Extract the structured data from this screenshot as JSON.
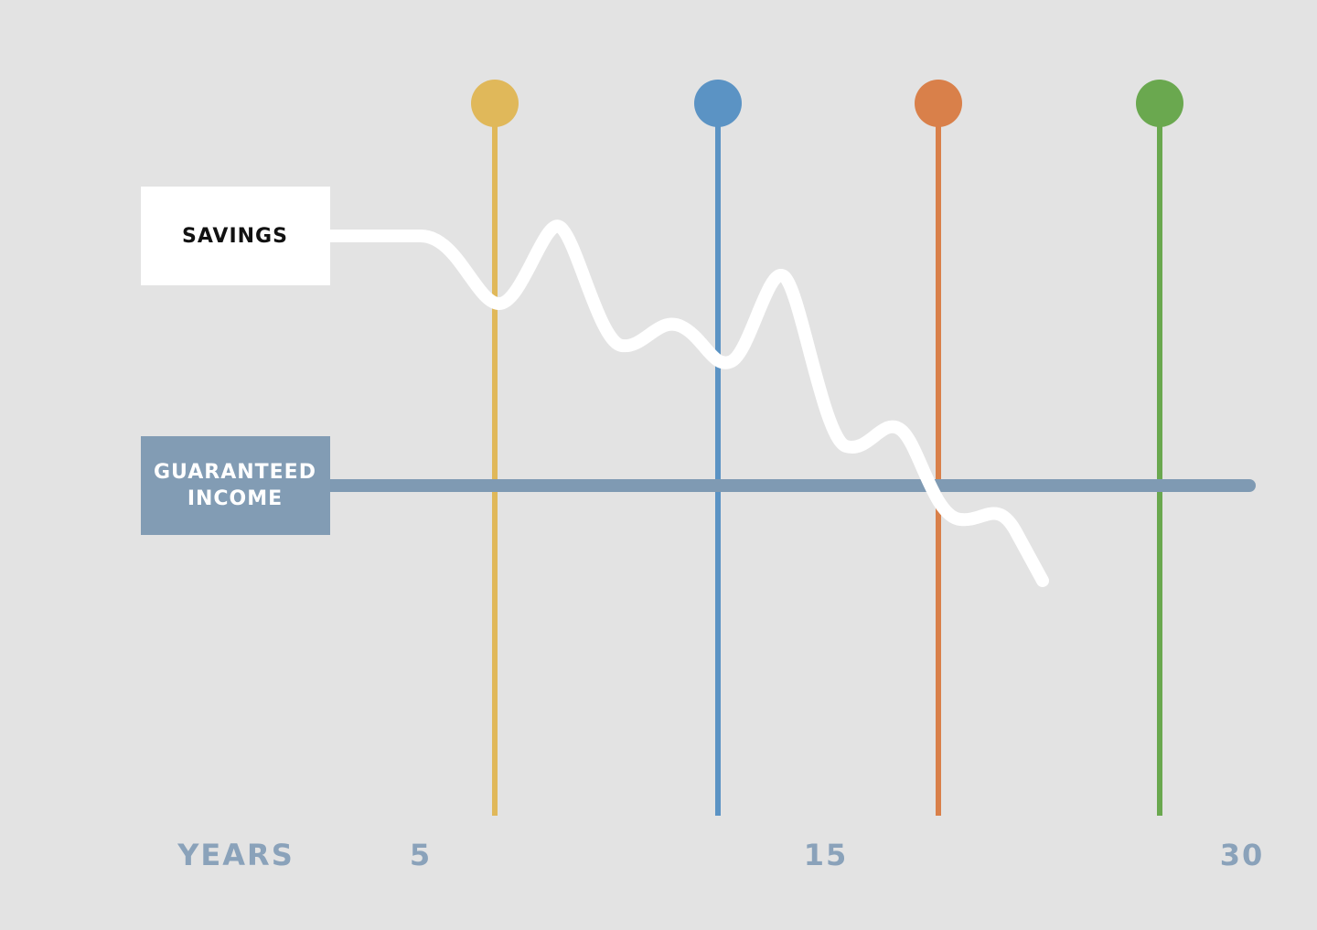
{
  "labels": {
    "savings": "SAVINGS",
    "guaranteed_income": [
      "GUARANTEED",
      "INCOME"
    ]
  },
  "axis": {
    "title": "YEARS",
    "ticks": [
      "5",
      "15",
      "30"
    ]
  }
}
